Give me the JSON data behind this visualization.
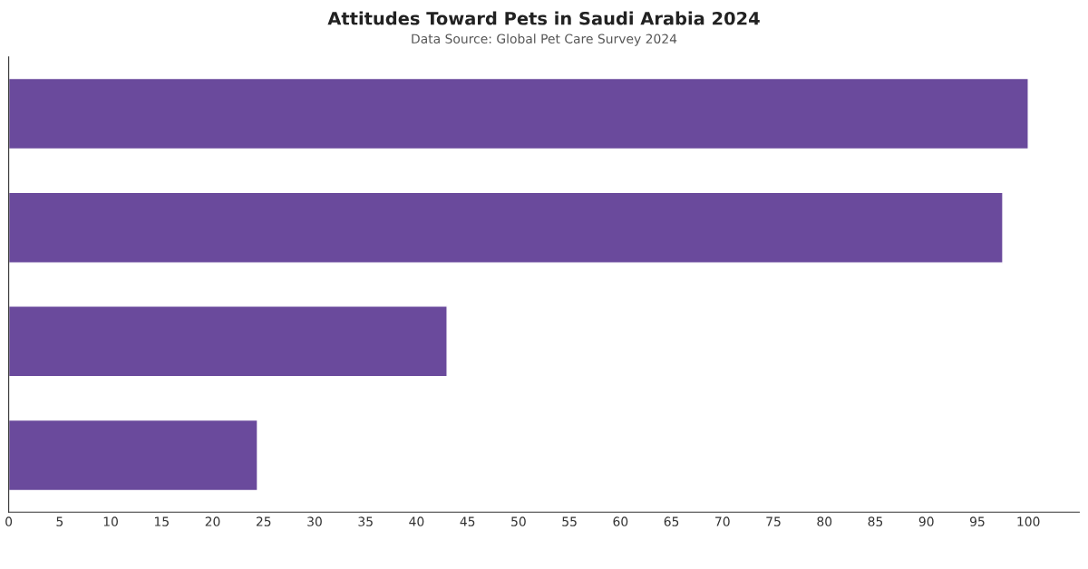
{
  "chart_data": {
    "type": "bar",
    "orientation": "horizontal",
    "title": "Attitudes Toward Pets in Saudi Arabia 2024",
    "subtitle": "Data Source: Global Pet Care Survey 2024",
    "categories": [
      null,
      null,
      null,
      null
    ],
    "series": [
      {
        "color": "#6a4a9c",
        "values": [
          100,
          97.5,
          43.0,
          24.4
        ]
      }
    ],
    "xlim": [
      0,
      105
    ],
    "xticks": [
      0,
      5,
      10,
      15,
      20,
      25,
      30,
      35,
      40,
      45,
      50,
      55,
      60,
      65,
      70,
      75,
      80,
      85,
      90,
      95,
      100
    ],
    "grid": false,
    "legend": false
  }
}
